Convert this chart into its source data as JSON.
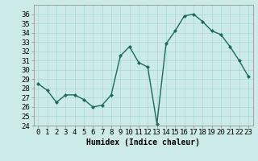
{
  "x": [
    0,
    1,
    2,
    3,
    4,
    5,
    6,
    7,
    8,
    9,
    10,
    11,
    12,
    13,
    14,
    15,
    16,
    17,
    18,
    19,
    20,
    21,
    22,
    23
  ],
  "y": [
    28.5,
    27.8,
    26.5,
    27.3,
    27.3,
    26.8,
    26.0,
    26.2,
    27.3,
    31.5,
    32.5,
    30.8,
    30.3,
    24.2,
    32.8,
    34.2,
    35.8,
    36.0,
    35.2,
    34.2,
    33.8,
    32.5,
    31.0,
    29.3
  ],
  "line_color": "#1a6b5a",
  "marker": "D",
  "marker_size": 2.0,
  "bg_color": "#cceae8",
  "grid_color": "#a8d8d5",
  "xlabel": "Humidex (Indice chaleur)",
  "xlim": [
    -0.5,
    23.5
  ],
  "ylim": [
    24,
    37
  ],
  "yticks": [
    24,
    25,
    26,
    27,
    28,
    29,
    30,
    31,
    32,
    33,
    34,
    35,
    36
  ],
  "xticks": [
    0,
    1,
    2,
    3,
    4,
    5,
    6,
    7,
    8,
    9,
    10,
    11,
    12,
    13,
    14,
    15,
    16,
    17,
    18,
    19,
    20,
    21,
    22,
    23
  ],
  "xtick_labels": [
    "0",
    "1",
    "2",
    "3",
    "4",
    "5",
    "6",
    "7",
    "8",
    "9",
    "10",
    "11",
    "12",
    "13",
    "14",
    "15",
    "16",
    "17",
    "18",
    "19",
    "20",
    "21",
    "22",
    "23"
  ],
  "line_width": 1.0,
  "xlabel_fontsize": 7,
  "tick_fontsize": 6.5
}
